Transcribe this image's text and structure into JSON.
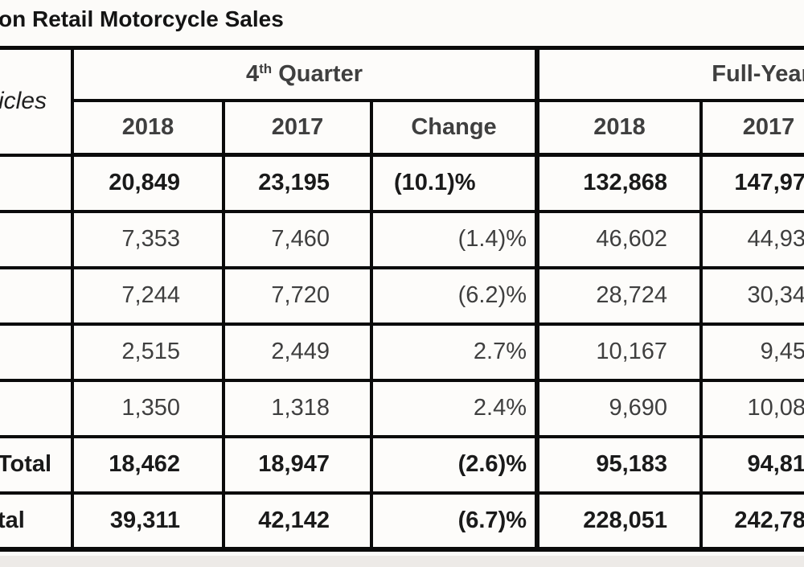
{
  "page": {
    "title": "on Retail Motorcycle Sales"
  },
  "colors": {
    "border": "#0b0b0b",
    "text_bold": "#1a1a1a",
    "text_regular": "#3f3f3f",
    "page_background": "#fcfbf9",
    "bottom_strip": "#edeae7"
  },
  "table": {
    "corner_label": "icles",
    "sections": {
      "q4_number": "4",
      "q4_superscript": "th",
      "q4_word": " Quarter",
      "full_year": "Full-Year"
    },
    "columns": {
      "q4_2018": "2018",
      "q4_2017": "2017",
      "q4_change": "Change",
      "fy_2018": "2018",
      "fy_2017": "2017"
    },
    "rows": [
      {
        "label": "",
        "q4_2018": "20,849",
        "q4_2017": "23,195",
        "q4_change": "(10.1)%",
        "fy_2018": "132,868",
        "fy_2017": "147,97"
      },
      {
        "label": "",
        "q4_2018": "7,353",
        "q4_2017": "7,460",
        "q4_change": "(1.4)%",
        "fy_2018": "46,602",
        "fy_2017": "44,93"
      },
      {
        "label": "",
        "q4_2018": "7,244",
        "q4_2017": "7,720",
        "q4_change": "(6.2)%",
        "fy_2018": "28,724",
        "fy_2017": "30,34"
      },
      {
        "label": "",
        "q4_2018": "2,515",
        "q4_2017": "2,449",
        "q4_change": "2.7%",
        "fy_2018": "10,167",
        "fy_2017": "9,45"
      },
      {
        "label": "",
        "q4_2018": "1,350",
        "q4_2017": "1,318",
        "q4_change": "2.4%",
        "fy_2018": "9,690",
        "fy_2017": "10,08"
      },
      {
        "label": "Total",
        "q4_2018": "18,462",
        "q4_2017": "18,947",
        "q4_change": "(2.6)%",
        "fy_2018": "95,183",
        "fy_2017": "94,81"
      },
      {
        "label": "tal",
        "q4_2018": "39,311",
        "q4_2017": "42,142",
        "q4_change": "(6.7)%",
        "fy_2018": "228,051",
        "fy_2017": "242,78"
      }
    ]
  }
}
